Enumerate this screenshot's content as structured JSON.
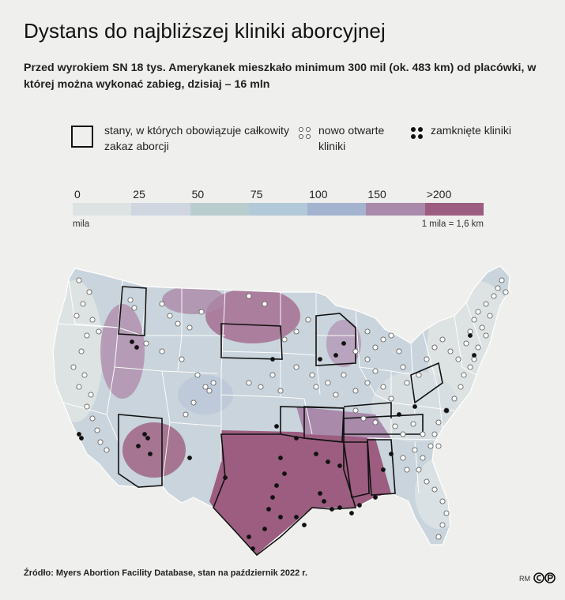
{
  "title": "Dystans do najbliższej kliniki aborcyjnej",
  "subtitle": "Przed wyrokiem SN 18 tys. Amerykanek mieszkało minimum 300 mil (ok. 483 km) od placówki, w której można wykonać zabieg, dzisiaj – 16 mln",
  "legend": {
    "ban_label": "stany, w których obowiązuje całkowity zakaz aborcji",
    "new_clinics_label": "nowo otwarte kliniki",
    "closed_clinics_label": "zamknięte kliniki"
  },
  "scale": {
    "labels": [
      "0",
      "25",
      "50",
      "75",
      "100",
      "150",
      ">200"
    ],
    "colors": [
      "#dde3e2",
      "#cfd6e0",
      "#b9cdcf",
      "#b1c9d8",
      "#a3b3d0",
      "#a98aab",
      "#9c5d80"
    ],
    "unit": "mila",
    "conversion": "1 mila = 1,6 km"
  },
  "map_colors": {
    "land_base": "#c9d4dc",
    "far": "#9c5d80",
    "mid": "#b090b0",
    "near": "#dde3e2",
    "state_border": "#ffffff",
    "ban_border": "#111111"
  },
  "source": "Źródło: Myers Abortion Facility Database, stan na październik 2022 r.",
  "credit": "RM"
}
